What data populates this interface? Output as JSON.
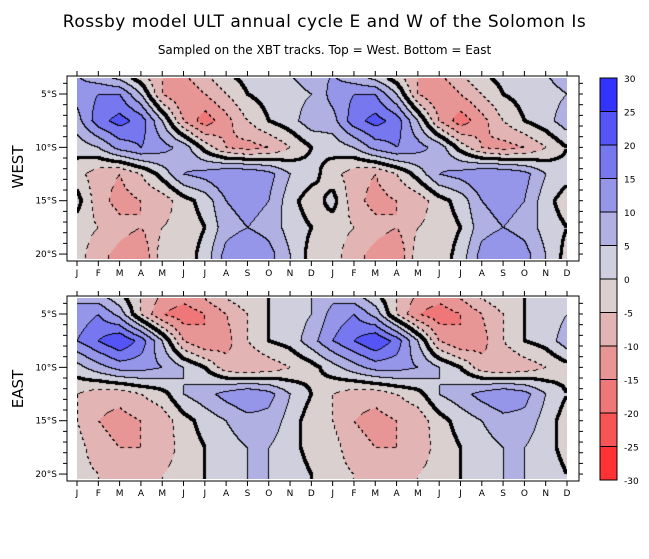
{
  "chart_data": {
    "type": "heatmap",
    "title": "Rossby model ULT annual cycle E and W of the Solomon Is",
    "subtitle": "Sampled on the XBT tracks. Top = West. Bottom = East",
    "xlabel": "",
    "ylabel": "",
    "x_tick_labels": [
      "J",
      "F",
      "M",
      "A",
      "M",
      "J",
      "J",
      "A",
      "S",
      "O",
      "N",
      "D",
      "J",
      "F",
      "M",
      "A",
      "M",
      "J",
      "J",
      "A",
      "S",
      "O",
      "N",
      "D"
    ],
    "y_tick_labels": [
      "5°S",
      "10°S",
      "15°S",
      "20°S"
    ],
    "y_tick_values": [
      5,
      10,
      15,
      20
    ],
    "ylim": [
      3.5,
      20.5
    ],
    "latitudes": [
      3,
      5,
      7.5,
      10,
      12.5,
      15,
      17.5,
      20
    ],
    "cycle_months": 12,
    "repeat_cycles": 2,
    "colorbar": {
      "levels": [
        -30,
        -25,
        -20,
        -15,
        -10,
        -5,
        0,
        5,
        10,
        15,
        20,
        25,
        30
      ],
      "labels": [
        "30",
        "25",
        "20",
        "15",
        "10",
        "5",
        "0",
        "-5",
        "-10",
        "-15",
        "-20",
        "-25",
        "-30"
      ],
      "colors": [
        "#3333ff",
        "#5555f7",
        "#7777f0",
        "#9595ea",
        "#b0b0e2",
        "#cfcfdd",
        "#dbd0d0",
        "#e2b4b4",
        "#e89595",
        "#ef7777",
        "#f75555",
        "#ff3333"
      ]
    },
    "panels": [
      {
        "name": "WEST",
        "z": [
          [
            10,
            5,
            0,
            -5,
            -10,
            -10,
            -5,
            0,
            2,
            3,
            5,
            8
          ],
          [
            12,
            15,
            15,
            5,
            -10,
            -15,
            -10,
            -5,
            0,
            2,
            3,
            5
          ],
          [
            8,
            18,
            22,
            18,
            5,
            -10,
            -18,
            -12,
            -5,
            0,
            3,
            8
          ],
          [
            2,
            5,
            12,
            15,
            12,
            8,
            -2,
            -10,
            -12,
            -10,
            -5,
            0
          ],
          [
            -3,
            -8,
            -10,
            -5,
            2,
            10,
            12,
            15,
            15,
            12,
            5,
            2
          ],
          [
            2,
            -8,
            -12,
            -10,
            -8,
            -2,
            2,
            10,
            12,
            10,
            2,
            -3
          ],
          [
            -3,
            -5,
            -8,
            -10,
            -5,
            -3,
            0,
            8,
            10,
            8,
            3,
            0
          ],
          [
            -3,
            -8,
            -12,
            -15,
            -2,
            -3,
            2,
            12,
            15,
            12,
            5,
            -2
          ]
        ]
      },
      {
        "name": "EAST",
        "z": [
          [
            8,
            5,
            0,
            -5,
            -10,
            -12,
            -8,
            -3,
            0,
            0,
            3,
            5
          ],
          [
            12,
            15,
            8,
            -5,
            -15,
            -18,
            -15,
            -10,
            -5,
            0,
            2,
            5
          ],
          [
            15,
            20,
            25,
            18,
            5,
            -10,
            -15,
            -12,
            -5,
            0,
            2,
            8
          ],
          [
            3,
            8,
            12,
            12,
            10,
            5,
            0,
            -8,
            -10,
            -8,
            -5,
            -2
          ],
          [
            -5,
            -8,
            -8,
            -5,
            -2,
            5,
            8,
            12,
            15,
            12,
            5,
            0
          ],
          [
            -5,
            -10,
            -12,
            -10,
            -8,
            -2,
            2,
            5,
            8,
            8,
            3,
            -3
          ],
          [
            -3,
            -8,
            -10,
            -10,
            -8,
            -3,
            0,
            3,
            5,
            5,
            2,
            -2
          ],
          [
            -3,
            -5,
            -8,
            -8,
            -5,
            -3,
            0,
            3,
            5,
            5,
            3,
            0
          ]
        ]
      }
    ]
  }
}
